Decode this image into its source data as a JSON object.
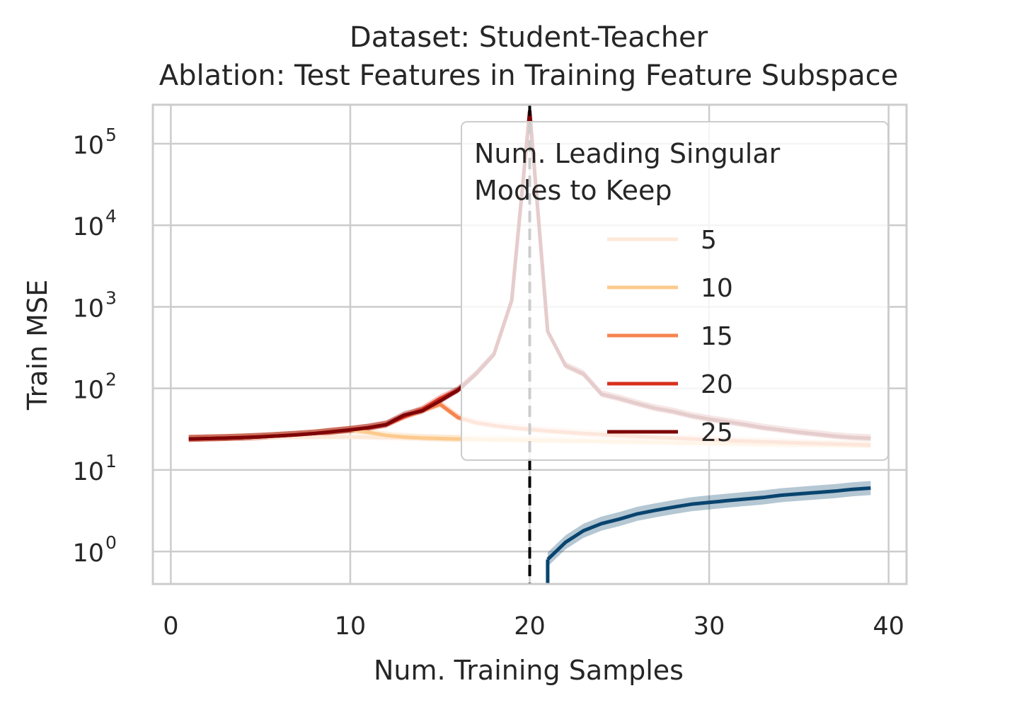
{
  "chart_data": {
    "type": "line",
    "title_lines": [
      "Dataset: Student-Teacher",
      "Ablation: Test Features in Training Feature Subspace"
    ],
    "xlabel": "Num. Training Samples",
    "ylabel": "Train MSE",
    "xlim": [
      -1,
      41
    ],
    "ylim": [
      0.4,
      300000
    ],
    "yscale": "log",
    "grid": true,
    "x_ticks": [
      {
        "value": 0,
        "label": "0"
      },
      {
        "value": 10,
        "label": "10"
      },
      {
        "value": 20,
        "label": "20"
      },
      {
        "value": 30,
        "label": "30"
      },
      {
        "value": 40,
        "label": "40"
      }
    ],
    "y_ticks": [
      {
        "value": 1,
        "base": "10",
        "exp": "0"
      },
      {
        "value": 10,
        "base": "10",
        "exp": "1"
      },
      {
        "value": 100,
        "base": "10",
        "exp": "2"
      },
      {
        "value": 1000,
        "base": "10",
        "exp": "3"
      },
      {
        "value": 10000,
        "base": "10",
        "exp": "4"
      },
      {
        "value": 100000,
        "base": "10",
        "exp": "5"
      }
    ],
    "vline": {
      "x": 20,
      "color": "#000000",
      "style": "dashed"
    },
    "legend": {
      "title_lines": [
        "Num. Leading Singular",
        "Modes to Keep"
      ],
      "placement": "upper right"
    },
    "series": [
      {
        "name": "5",
        "color": "#fee8d8",
        "in_legend": true,
        "x": [
          1,
          2,
          3,
          4,
          5,
          6,
          7,
          8,
          9,
          10,
          11,
          12,
          13,
          14,
          15,
          16,
          17,
          18,
          19,
          20,
          21,
          22,
          23,
          24,
          25,
          26,
          27,
          28,
          29,
          30,
          31,
          32,
          33,
          34,
          35,
          36,
          37,
          38,
          39
        ],
        "y": [
          24,
          24.3,
          24.6,
          24.8,
          25,
          25.2,
          25.4,
          25.5,
          25.5,
          25.5,
          25.2,
          24.9,
          24.6,
          24.4,
          24.2,
          24.0,
          23.9,
          23.8,
          23.7,
          23.6,
          23.4,
          23.2,
          23.0,
          22.8,
          22.6,
          22.4,
          22.2,
          22.0,
          21.8,
          21.6,
          21.4,
          21.2,
          21.0,
          20.9,
          20.7,
          20.5,
          20.4,
          20.2,
          20.0
        ]
      },
      {
        "name": "10",
        "color": "#fdca8e",
        "in_legend": true,
        "x": [
          1,
          2,
          3,
          4,
          5,
          6,
          7,
          8,
          9,
          10,
          11,
          12,
          13,
          14,
          15,
          16,
          17,
          18,
          19,
          20,
          21,
          22,
          23,
          24,
          25,
          26,
          27,
          28,
          29,
          30,
          31,
          32,
          33,
          34,
          35,
          36,
          37,
          38,
          39
        ],
        "y": [
          24,
          24.3,
          24.6,
          25,
          25.5,
          26.2,
          27,
          28,
          29.5,
          31,
          29,
          26.5,
          25.3,
          24.7,
          24.3,
          24.0,
          23.8,
          23.6,
          23.4,
          23.2,
          23.0,
          22.8,
          22.6,
          22.4,
          22.2,
          22.0,
          21.8,
          21.6,
          21.4,
          21.2,
          21.0,
          20.9,
          20.7,
          20.5,
          20.4,
          20.2,
          20.1,
          20.0,
          19.9
        ]
      },
      {
        "name": "15",
        "color": "#f6844f",
        "in_legend": true,
        "x": [
          1,
          2,
          3,
          4,
          5,
          6,
          7,
          8,
          9,
          10,
          11,
          12,
          13,
          14,
          15,
          16,
          17,
          18,
          19,
          20,
          21,
          22,
          23,
          24,
          25,
          26,
          27,
          28,
          29,
          30,
          31,
          32,
          33,
          34,
          35,
          36,
          37,
          38,
          39
        ],
        "y": [
          24,
          24.3,
          24.6,
          25,
          25.5,
          26.2,
          27,
          28,
          29.5,
          31,
          33,
          36,
          45,
          53,
          64,
          44,
          38,
          35,
          33,
          31.5,
          30,
          29,
          28,
          27.2,
          26.5,
          25.8,
          25.2,
          24.6,
          24.0,
          23.5,
          23.0,
          22.6,
          22.2,
          21.8,
          21.4,
          21.1,
          20.8,
          20.5,
          20.2
        ]
      },
      {
        "name": "20",
        "color": "#d8301c",
        "in_legend": true,
        "x": [
          1,
          2,
          3,
          4,
          5,
          6,
          7,
          8,
          9,
          10,
          11,
          12,
          13,
          14,
          15,
          16,
          17,
          18,
          19,
          20,
          21,
          22,
          23,
          24,
          25,
          26,
          27,
          28,
          29,
          30,
          31,
          32,
          33,
          34,
          35,
          36,
          37,
          38,
          39
        ],
        "y": [
          24,
          24.3,
          24.6,
          25,
          25.5,
          26.2,
          27,
          28,
          29.5,
          31,
          33,
          36,
          45,
          55,
          75,
          95,
          150,
          260,
          1200,
          250000,
          500,
          190,
          150,
          85,
          75,
          65,
          57,
          52,
          46,
          42,
          39,
          36,
          33,
          31,
          29,
          27.5,
          26,
          25,
          24.5
        ]
      },
      {
        "name": "25",
        "color": "#7e0407",
        "in_legend": true,
        "x": [
          1,
          2,
          3,
          4,
          5,
          6,
          7,
          8,
          9,
          10,
          11,
          12,
          13,
          14,
          15,
          16,
          17,
          18,
          19,
          20,
          21,
          22,
          23,
          24,
          25,
          26,
          27,
          28,
          29,
          30,
          31,
          32,
          33,
          34,
          35,
          36,
          37,
          38,
          39
        ],
        "y": [
          24,
          24.3,
          24.6,
          25,
          25.5,
          26.2,
          27,
          28,
          29.5,
          31,
          33,
          36,
          47,
          53,
          70,
          95,
          150,
          260,
          1200,
          250000,
          500,
          190,
          150,
          85,
          75,
          65,
          57,
          52,
          46,
          42,
          39,
          36,
          33,
          31,
          29,
          27.5,
          26,
          25,
          24.5
        ]
      },
      {
        "name": "",
        "color": "#08446e",
        "in_legend": false,
        "x": [
          21,
          22,
          23,
          24,
          25,
          26,
          27,
          28,
          29,
          30,
          31,
          32,
          33,
          34,
          35,
          36,
          37,
          38,
          39
        ],
        "y": [
          0.8,
          1.3,
          1.8,
          2.2,
          2.5,
          2.9,
          3.2,
          3.5,
          3.8,
          4.0,
          4.2,
          4.4,
          4.6,
          4.9,
          5.1,
          5.3,
          5.5,
          5.8,
          6.0
        ]
      }
    ]
  }
}
